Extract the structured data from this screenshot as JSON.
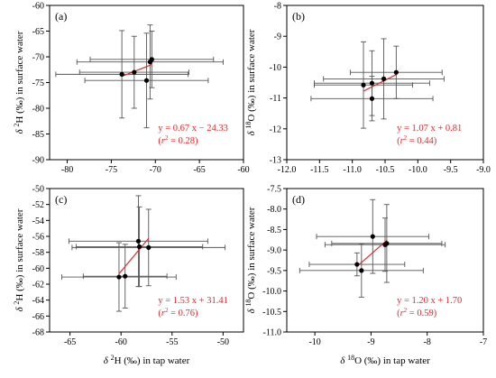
{
  "figure": {
    "shared_xlabel_left": "δ²H (‰) in tap water",
    "shared_xlabel_right": "δ¹⁸O (‰) in tap water"
  },
  "chart_data": [
    {
      "type": "scatter",
      "panel": "(a)",
      "xlabel": "",
      "ylabel": "δ ²H (‰) in surface water",
      "xlim": [
        -82,
        -60
      ],
      "ylim": [
        -90,
        -60
      ],
      "xticks": [
        -80,
        -75,
        -70,
        -65,
        -60
      ],
      "yticks": [
        -90,
        -85,
        -80,
        -75,
        -70,
        -65,
        -60
      ],
      "xticklabels": [
        "-80",
        "-75",
        "-70",
        "-65",
        "-60"
      ],
      "yticklabels": [
        "-90",
        "-85",
        "-80",
        "-75",
        "-70",
        "-65",
        "-60"
      ],
      "points": [
        {
          "x": -73.8,
          "y": -73.4,
          "xerr": 7.5,
          "yerr": 8.5
        },
        {
          "x": -72.4,
          "y": -73.0,
          "xerr": 6.2,
          "yerr": 7.0
        },
        {
          "x": -71.0,
          "y": -74.6,
          "xerr": 7.0,
          "yerr": 9.2
        },
        {
          "x": -70.6,
          "y": -71.0,
          "xerr": 8.3,
          "yerr": 7.2
        },
        {
          "x": -70.4,
          "y": -70.5,
          "xerr": 7.0,
          "yerr": 5.5
        }
      ],
      "fit": {
        "slope": 0.67,
        "intercept": -24.33,
        "x_range": [
          -73.8,
          -70.4
        ]
      },
      "equation": "y = 0.67 x − 24.33",
      "r2": "(r² = 0.28)",
      "fit_color": "#e8262a"
    },
    {
      "type": "scatter",
      "panel": "(b)",
      "xlabel": "",
      "ylabel": "δ ¹⁸O (‰) in surface water",
      "xlim": [
        -12.0,
        -9.0
      ],
      "ylim": [
        -13,
        -8
      ],
      "xticks": [
        -12.0,
        -11.5,
        -11.0,
        -10.5,
        -10.0,
        -9.5,
        -9.0
      ],
      "yticks": [
        -13,
        -12,
        -11,
        -10,
        -9,
        -8
      ],
      "xticklabels": [
        "-12.0",
        "-11.5",
        "-11.0",
        "-10.5",
        "-10.0",
        "-9.5",
        "-9.0"
      ],
      "yticklabels": [
        "-13",
        "-12",
        "-11",
        "-10",
        "-9",
        "-8"
      ],
      "points": [
        {
          "x": -10.83,
          "y": -10.58,
          "xerr": 0.75,
          "yerr": 1.4
        },
        {
          "x": -10.7,
          "y": -10.52,
          "xerr": 0.88,
          "yerr": 1.05
        },
        {
          "x": -10.7,
          "y": -11.02,
          "xerr": 0.93,
          "yerr": 0.72
        },
        {
          "x": -10.52,
          "y": -10.38,
          "xerr": 0.92,
          "yerr": 1.3
        },
        {
          "x": -10.33,
          "y": -10.17,
          "xerr": 0.7,
          "yerr": 0.85
        }
      ],
      "fit": {
        "slope": 1.07,
        "intercept": 0.81,
        "x_range": [
          -10.83,
          -10.33
        ]
      },
      "equation": "y = 1.07 x + 0.81",
      "r2": "(r² = 0.44)",
      "fit_color": "#e8262a"
    },
    {
      "type": "scatter",
      "panel": "(c)",
      "xlabel": "δ ²H (‰) in tap water",
      "ylabel": "δ ²H (‰) in surface water",
      "xlim": [
        -67,
        -48
      ],
      "ylim": [
        -68,
        -50
      ],
      "xticks": [
        -65,
        -60,
        -55,
        -50
      ],
      "yticks": [
        -68,
        -66,
        -64,
        -62,
        -60,
        -58,
        -56,
        -54,
        -52,
        -50
      ],
      "xticklabels": [
        "-65",
        "-60",
        "-55",
        "-50"
      ],
      "yticklabels": [
        "-68",
        "-66",
        "-64",
        "-62",
        "-60",
        "-58",
        "-56",
        "-54",
        "-52",
        "-50"
      ],
      "points": [
        {
          "x": -60.2,
          "y": -61.1,
          "xerr": 5.6,
          "yerr": 4.3
        },
        {
          "x": -59.6,
          "y": -61.0,
          "xerr": 4.1,
          "yerr": 4.0
        },
        {
          "x": -58.3,
          "y": -56.6,
          "xerr": 6.8,
          "yerr": 5.7
        },
        {
          "x": -58.2,
          "y": -57.3,
          "xerr": 6.2,
          "yerr": 5.0
        },
        {
          "x": -57.3,
          "y": -57.4,
          "xerr": 7.5,
          "yerr": 4.8
        }
      ],
      "fit": {
        "slope": 1.53,
        "intercept": 31.41,
        "x_range": [
          -60.2,
          -57.3
        ]
      },
      "equation": "y = 1.53 x + 31.41",
      "r2": "(r² = 0.76)",
      "fit_color": "#e8262a"
    },
    {
      "type": "scatter",
      "panel": "(d)",
      "xlabel": "δ ¹⁸O (‰) in tap water",
      "ylabel": "δ ¹⁸O (‰) in surface water",
      "xlim": [
        -10.5,
        -7.0
      ],
      "ylim": [
        -11.0,
        -7.5
      ],
      "xticks": [
        -10,
        -9,
        -8,
        -7
      ],
      "yticks": [
        -11.0,
        -10.5,
        -10.0,
        -9.5,
        -9.0,
        -8.5,
        -8.0,
        -7.5
      ],
      "xticklabels": [
        "-10",
        "-9",
        "-8",
        "-7"
      ],
      "yticklabels": [
        "-11.0",
        "-10.5",
        "-10.0",
        "-9.5",
        "-9.0",
        "-8.5",
        "-8.0",
        "-7.5"
      ],
      "points": [
        {
          "x": -9.25,
          "y": -9.35,
          "xerr": 0.85,
          "yerr": 0.28
        },
        {
          "x": -9.17,
          "y": -9.5,
          "xerr": 1.1,
          "yerr": 0.65
        },
        {
          "x": -8.97,
          "y": -8.67,
          "xerr": 1.0,
          "yerr": 0.9
        },
        {
          "x": -8.75,
          "y": -8.87,
          "xerr": 1.07,
          "yerr": 0.65
        },
        {
          "x": -8.72,
          "y": -8.84,
          "xerr": 0.98,
          "yerr": 0.95
        }
      ],
      "fit": {
        "slope": 1.2,
        "intercept": 1.7,
        "x_range": [
          -9.25,
          -8.72
        ]
      },
      "equation": "y = 1.20 x + 1.70",
      "r2": "(r² = 0.59)",
      "fit_color": "#e8262a"
    }
  ]
}
